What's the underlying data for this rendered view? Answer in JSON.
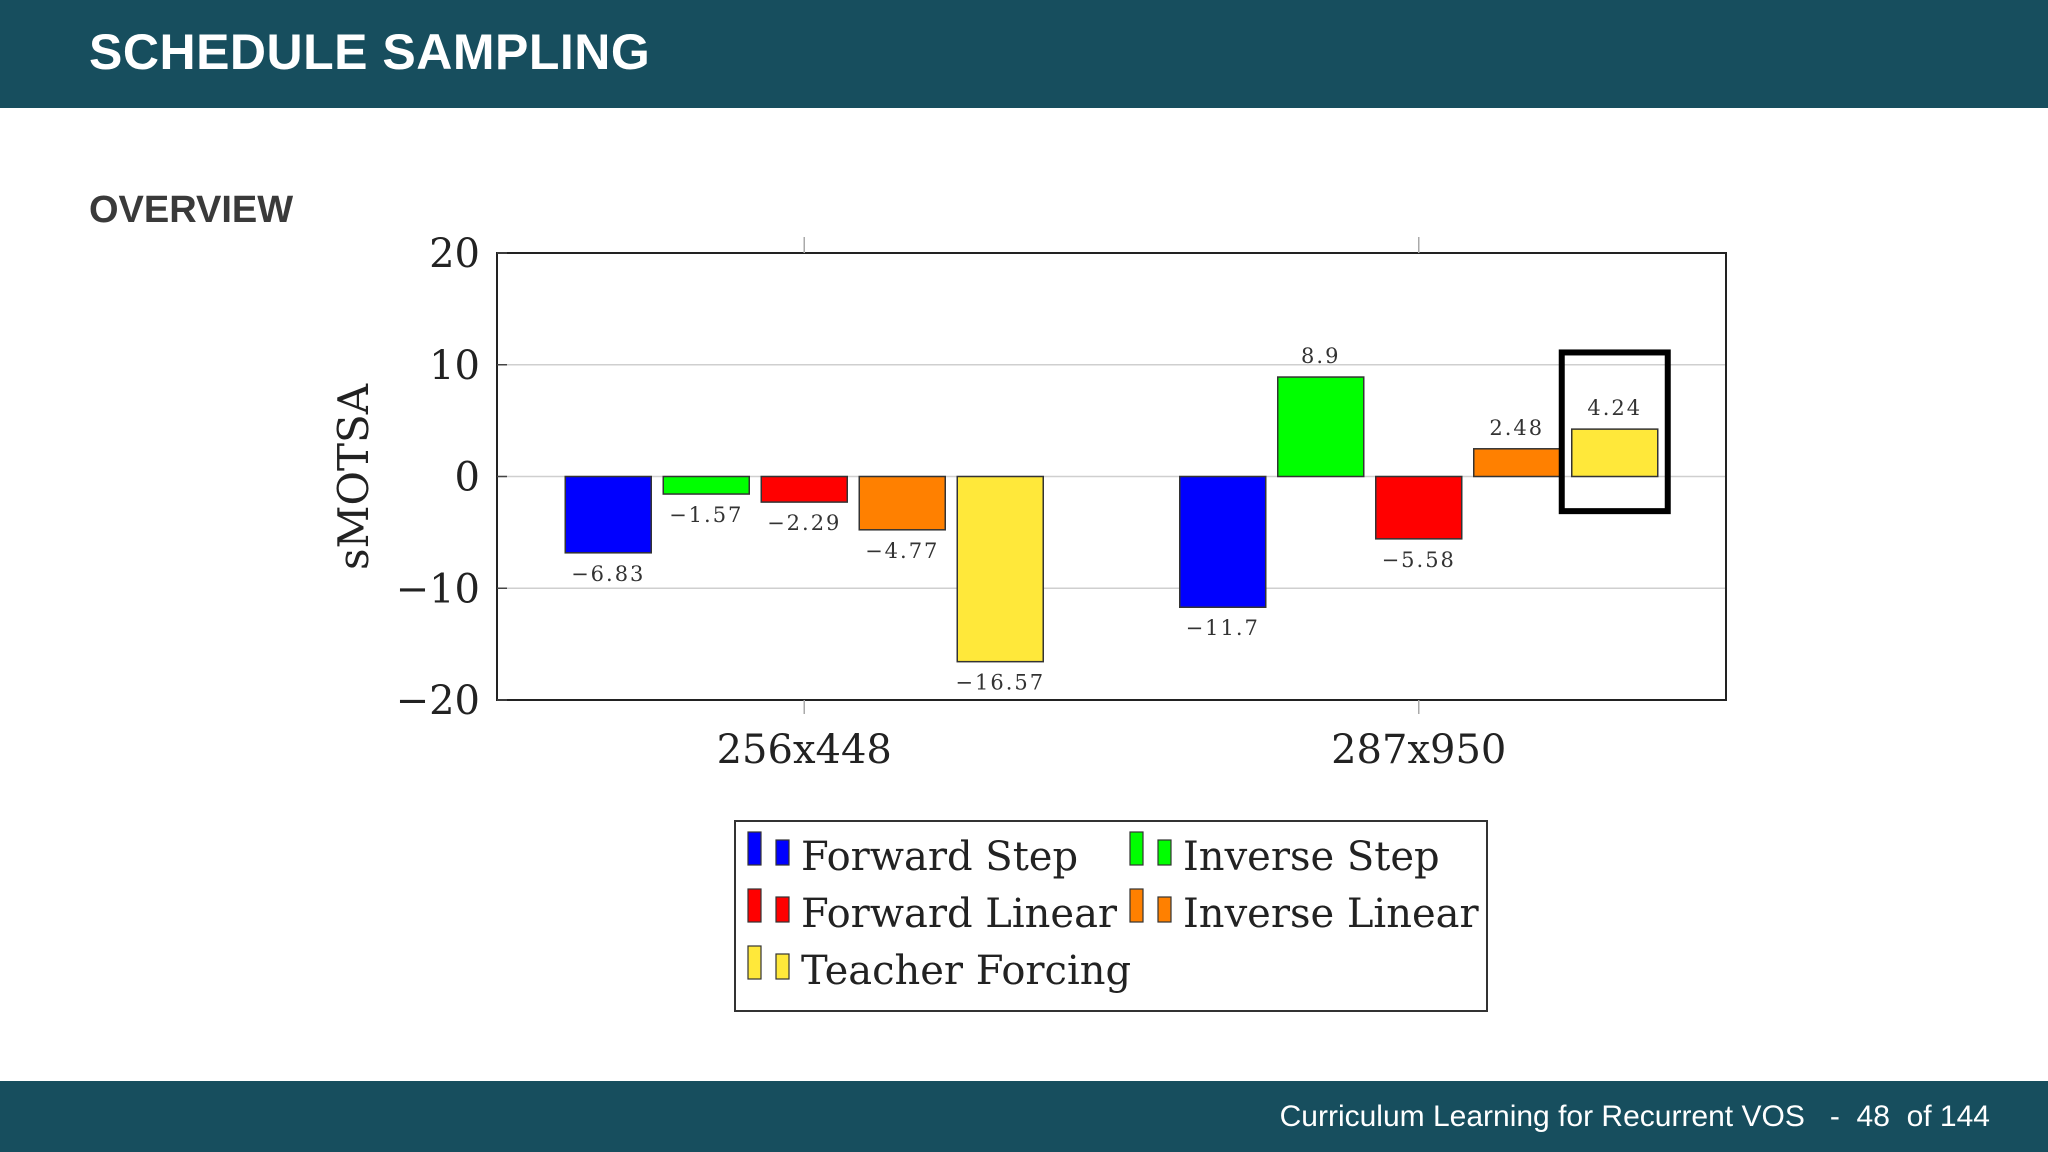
{
  "slide": {
    "title": "SCHEDULE SAMPLING",
    "section": "OVERVIEW"
  },
  "footer": {
    "course": "Curriculum Learning for Recurrent VOS",
    "separator": "-",
    "page": "48",
    "total_label": "of 144"
  },
  "colors": {
    "header_bg": "#174e5e",
    "highlight_box": "#000000"
  },
  "chart_data": {
    "type": "bar",
    "ylabel": "sMOTSA",
    "xlabel": "",
    "ylim": [
      -20,
      20
    ],
    "yticks": [
      20,
      10,
      0,
      -10,
      -20
    ],
    "ytick_labels": [
      "20",
      "10",
      "0",
      "−10",
      "−20"
    ],
    "grid": "horizontal",
    "legend_position": "below",
    "categories": [
      "256x448",
      "287x950"
    ],
    "series": [
      {
        "name": "Forward Step",
        "color": "#0000ff",
        "values": [
          -6.83,
          -11.7
        ],
        "labels": [
          "−6.83",
          "−11.7"
        ]
      },
      {
        "name": "Inverse Step",
        "color": "#00ff00",
        "values": [
          -1.57,
          8.9
        ],
        "labels": [
          "−1.57",
          "8.9"
        ]
      },
      {
        "name": "Forward Linear",
        "color": "#ff0000",
        "values": [
          -2.29,
          -5.58
        ],
        "labels": [
          "−2.29",
          "−5.58"
        ]
      },
      {
        "name": "Inverse Linear",
        "color": "#ff8000",
        "values": [
          -4.77,
          2.48
        ],
        "labels": [
          "−4.77",
          "2.48"
        ]
      },
      {
        "name": "Teacher Forcing",
        "color": "#ffe83a",
        "values": [
          -16.57,
          4.24
        ],
        "labels": [
          "−16.57",
          "4.24"
        ]
      }
    ],
    "highlight": {
      "category": "287x950",
      "series": "Teacher Forcing"
    }
  }
}
